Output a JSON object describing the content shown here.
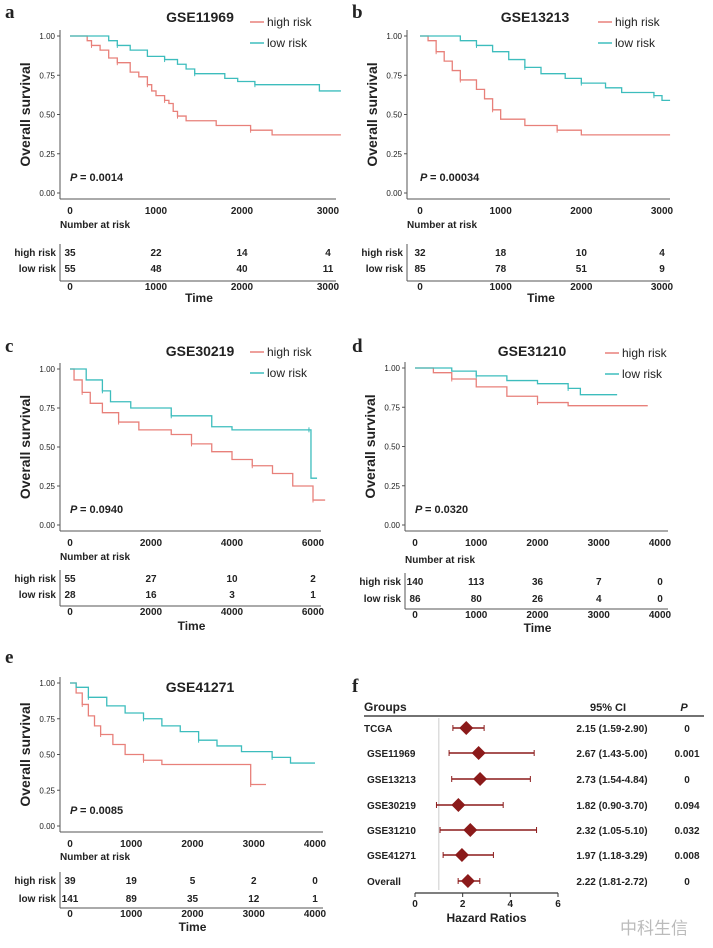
{
  "chart_data": [
    {
      "type": "line",
      "panel": "a",
      "title": "GSE11969",
      "xlabel": "Time",
      "ylabel": "Overall survival",
      "xlim": [
        0,
        3000
      ],
      "ylim": [
        0,
        1
      ],
      "xticks": [
        "0",
        "1000",
        "2000",
        "3000"
      ],
      "yticks": [
        "0.00",
        "0.25",
        "0.50",
        "0.75",
        "1.00"
      ],
      "pvalue_label": "P",
      "pvalue": "= 0.0014",
      "risk_title": "Number at risk",
      "series": [
        {
          "name": "high risk",
          "color": "#e8807a",
          "points": [
            [
              0,
              1
            ],
            [
              200,
              0.97
            ],
            [
              250,
              0.94
            ],
            [
              350,
              0.91
            ],
            [
              450,
              0.86
            ],
            [
              550,
              0.83
            ],
            [
              700,
              0.77
            ],
            [
              800,
              0.74
            ],
            [
              900,
              0.69
            ],
            [
              950,
              0.65
            ],
            [
              1000,
              0.62
            ],
            [
              1100,
              0.59
            ],
            [
              1150,
              0.57
            ],
            [
              1200,
              0.52
            ],
            [
              1250,
              0.49
            ],
            [
              1350,
              0.46
            ],
            [
              1700,
              0.43
            ],
            [
              2100,
              0.4
            ],
            [
              2350,
              0.37
            ],
            [
              3150,
              0.37
            ]
          ],
          "at_risk": [
            "35",
            "22",
            "14",
            "4"
          ]
        },
        {
          "name": "low risk",
          "color": "#3dbdbd",
          "points": [
            [
              0,
              1
            ],
            [
              450,
              0.97
            ],
            [
              550,
              0.94
            ],
            [
              700,
              0.91
            ],
            [
              900,
              0.87
            ],
            [
              1100,
              0.85
            ],
            [
              1250,
              0.82
            ],
            [
              1350,
              0.79
            ],
            [
              1450,
              0.76
            ],
            [
              1800,
              0.73
            ],
            [
              1950,
              0.71
            ],
            [
              2150,
              0.69
            ],
            [
              2900,
              0.65
            ],
            [
              3150,
              0.65
            ]
          ],
          "at_risk": [
            "55",
            "48",
            "40",
            "11"
          ]
        }
      ]
    },
    {
      "type": "line",
      "panel": "b",
      "title": "GSE13213",
      "xlabel": "Time",
      "ylabel": "Overall survival",
      "xlim": [
        0,
        3000
      ],
      "ylim": [
        0,
        1
      ],
      "xticks": [
        "0",
        "1000",
        "2000",
        "3000"
      ],
      "yticks": [
        "0.00",
        "0.25",
        "0.50",
        "0.75",
        "1.00"
      ],
      "pvalue_label": "P",
      "pvalue": "= 0.00034",
      "risk_title": "Number at risk",
      "series": [
        {
          "name": "high risk",
          "color": "#e8807a",
          "points": [
            [
              0,
              1
            ],
            [
              100,
              0.97
            ],
            [
              200,
              0.9
            ],
            [
              300,
              0.84
            ],
            [
              400,
              0.78
            ],
            [
              500,
              0.72
            ],
            [
              700,
              0.66
            ],
            [
              800,
              0.6
            ],
            [
              900,
              0.53
            ],
            [
              1000,
              0.47
            ],
            [
              1300,
              0.43
            ],
            [
              1700,
              0.4
            ],
            [
              2000,
              0.37
            ],
            [
              3100,
              0.37
            ]
          ],
          "at_risk": [
            "32",
            "18",
            "10",
            "4"
          ]
        },
        {
          "name": "low risk",
          "color": "#3dbdbd",
          "points": [
            [
              0,
              1
            ],
            [
              500,
              0.97
            ],
            [
              700,
              0.94
            ],
            [
              900,
              0.9
            ],
            [
              1100,
              0.85
            ],
            [
              1300,
              0.8
            ],
            [
              1500,
              0.76
            ],
            [
              1800,
              0.73
            ],
            [
              2000,
              0.7
            ],
            [
              2300,
              0.67
            ],
            [
              2500,
              0.64
            ],
            [
              2900,
              0.62
            ],
            [
              3000,
              0.59
            ],
            [
              3100,
              0.59
            ]
          ],
          "at_risk": [
            "85",
            "78",
            "51",
            "9"
          ]
        }
      ]
    },
    {
      "type": "line",
      "panel": "c",
      "title": "GSE30219",
      "xlabel": "Time",
      "ylabel": "Overall survival",
      "xlim": [
        0,
        6000
      ],
      "ylim": [
        0,
        1
      ],
      "xticks": [
        "0",
        "2000",
        "4000",
        "6000"
      ],
      "yticks": [
        "0.00",
        "0.25",
        "0.50",
        "0.75",
        "1.00"
      ],
      "pvalue_label": "P",
      "pvalue": "= 0.0940",
      "risk_title": "Number at risk",
      "series": [
        {
          "name": "high risk",
          "color": "#e8807a",
          "points": [
            [
              0,
              1
            ],
            [
              100,
              0.93
            ],
            [
              300,
              0.85
            ],
            [
              500,
              0.78
            ],
            [
              800,
              0.72
            ],
            [
              1200,
              0.66
            ],
            [
              1700,
              0.61
            ],
            [
              2500,
              0.58
            ],
            [
              3000,
              0.52
            ],
            [
              3500,
              0.47
            ],
            [
              4000,
              0.42
            ],
            [
              4500,
              0.38
            ],
            [
              5000,
              0.33
            ],
            [
              5500,
              0.25
            ],
            [
              6000,
              0.16
            ],
            [
              6300,
              0.16
            ]
          ],
          "at_risk": [
            "55",
            "27",
            "10",
            "2"
          ]
        },
        {
          "name": "low risk",
          "color": "#3dbdbd",
          "points": [
            [
              0,
              1
            ],
            [
              400,
              0.93
            ],
            [
              800,
              0.86
            ],
            [
              1000,
              0.79
            ],
            [
              1500,
              0.75
            ],
            [
              2500,
              0.7
            ],
            [
              3500,
              0.63
            ],
            [
              4000,
              0.61
            ],
            [
              5900,
              0.61
            ],
            [
              5950,
              0.3
            ],
            [
              6100,
              0.3
            ]
          ],
          "at_risk": [
            "28",
            "16",
            "3",
            "1"
          ]
        }
      ]
    },
    {
      "type": "line",
      "panel": "d",
      "title": "GSE31210",
      "xlabel": "Time",
      "ylabel": "Overall survival",
      "xlim": [
        0,
        4000
      ],
      "ylim": [
        0,
        1
      ],
      "xticks": [
        "0",
        "1000",
        "2000",
        "3000",
        "4000"
      ],
      "yticks": [
        "0.00",
        "0.25",
        "0.50",
        "0.75",
        "1.00"
      ],
      "pvalue_label": "P",
      "pvalue": "= 0.0320",
      "risk_title": "Number at risk",
      "series": [
        {
          "name": "high risk",
          "color": "#e8807a",
          "points": [
            [
              0,
              1
            ],
            [
              300,
              0.97
            ],
            [
              600,
              0.93
            ],
            [
              1000,
              0.88
            ],
            [
              1500,
              0.82
            ],
            [
              2000,
              0.78
            ],
            [
              2500,
              0.76
            ],
            [
              3800,
              0.76
            ]
          ],
          "at_risk": [
            "140",
            "113",
            "36",
            "7",
            "0"
          ]
        },
        {
          "name": "low risk",
          "color": "#3dbdbd",
          "points": [
            [
              0,
              1
            ],
            [
              600,
              0.98
            ],
            [
              1000,
              0.95
            ],
            [
              1500,
              0.92
            ],
            [
              2000,
              0.9
            ],
            [
              2500,
              0.87
            ],
            [
              2700,
              0.83
            ],
            [
              3300,
              0.83
            ]
          ],
          "at_risk": [
            "86",
            "80",
            "26",
            "4",
            "0"
          ]
        }
      ]
    },
    {
      "type": "line",
      "panel": "e",
      "title": "GSE41271",
      "xlabel": "Time",
      "ylabel": "Overall survival",
      "xlim": [
        0,
        4000
      ],
      "ylim": [
        0,
        1
      ],
      "xticks": [
        "0",
        "1000",
        "2000",
        "3000",
        "4000"
      ],
      "yticks": [
        "0.00",
        "0.25",
        "0.50",
        "0.75",
        "1.00"
      ],
      "pvalue_label": "P",
      "pvalue": "= 0.0085",
      "risk_title": "Number at risk",
      "series": [
        {
          "name": "high risk",
          "color": "#e8807a",
          "points": [
            [
              0,
              1
            ],
            [
              100,
              0.93
            ],
            [
              200,
              0.85
            ],
            [
              300,
              0.77
            ],
            [
              400,
              0.7
            ],
            [
              500,
              0.64
            ],
            [
              700,
              0.57
            ],
            [
              900,
              0.5
            ],
            [
              1200,
              0.46
            ],
            [
              1500,
              0.43
            ],
            [
              2900,
              0.43
            ],
            [
              2950,
              0.29
            ],
            [
              3200,
              0.29
            ]
          ],
          "at_risk": [
            "39",
            "19",
            "5",
            "2",
            "0"
          ]
        },
        {
          "name": "low risk",
          "color": "#3dbdbd",
          "points": [
            [
              0,
              1
            ],
            [
              100,
              0.97
            ],
            [
              300,
              0.9
            ],
            [
              600,
              0.84
            ],
            [
              900,
              0.79
            ],
            [
              1200,
              0.75
            ],
            [
              1500,
              0.7
            ],
            [
              1800,
              0.66
            ],
            [
              2100,
              0.6
            ],
            [
              2400,
              0.56
            ],
            [
              2800,
              0.52
            ],
            [
              3300,
              0.48
            ],
            [
              3600,
              0.44
            ],
            [
              4000,
              0.44
            ]
          ],
          "at_risk": [
            "141",
            "89",
            "35",
            "12",
            "1"
          ]
        }
      ]
    },
    {
      "type": "forest",
      "panel": "f",
      "xlabel": "Hazard Ratios",
      "xlim": [
        0,
        6
      ],
      "xticks": [
        "0",
        "2",
        "4",
        "6"
      ],
      "reference": 1,
      "headers": {
        "groups": "Groups",
        "ci": "95% CI",
        "p": "P"
      },
      "color": "#8b1a1a",
      "rows": [
        {
          "group": "TCGA",
          "hr": 2.15,
          "lo": 1.59,
          "hi": 2.9,
          "ci": "2.15 (1.59-2.90)",
          "p": "0"
        },
        {
          "group": "GSE11969",
          "hr": 2.67,
          "lo": 1.43,
          "hi": 5.0,
          "ci": "2.67 (1.43-5.00)",
          "p": "0.001"
        },
        {
          "group": "GSE13213",
          "hr": 2.73,
          "lo": 1.54,
          "hi": 4.84,
          "ci": "2.73 (1.54-4.84)",
          "p": "0"
        },
        {
          "group": "GSE30219",
          "hr": 1.82,
          "lo": 0.9,
          "hi": 3.7,
          "ci": "1.82 (0.90-3.70)",
          "p": "0.094"
        },
        {
          "group": "GSE31210",
          "hr": 2.32,
          "lo": 1.05,
          "hi": 5.1,
          "ci": "2.32 (1.05-5.10)",
          "p": "0.032"
        },
        {
          "group": "GSE41271",
          "hr": 1.97,
          "lo": 1.18,
          "hi": 3.29,
          "ci": "1.97 (1.18-3.29)",
          "p": "0.008"
        },
        {
          "group": "Overall",
          "hr": 2.22,
          "lo": 1.81,
          "hi": 2.72,
          "ci": "2.22 (1.81-2.72)",
          "p": "0"
        }
      ]
    }
  ],
  "watermark": "中科生信"
}
